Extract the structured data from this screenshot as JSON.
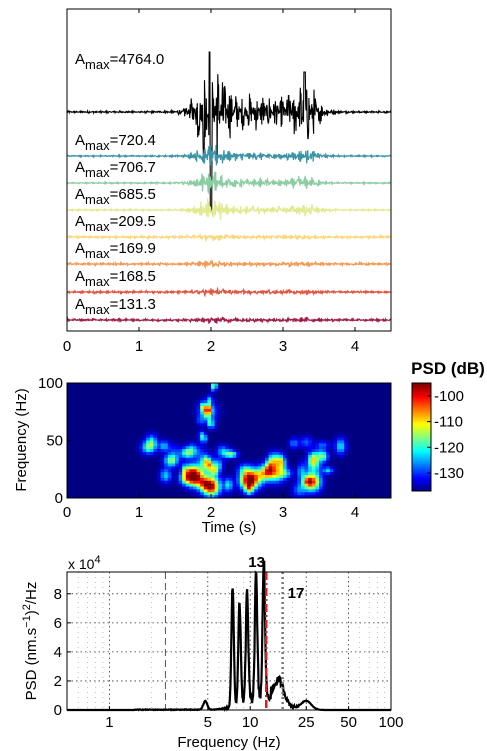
{
  "chart_data": [
    {
      "type": "line",
      "panel": "seismograms",
      "xlabel": "",
      "ylabel": "",
      "xlim": [
        0,
        4.5
      ],
      "xticks": [
        "0",
        "1",
        "2",
        "3",
        "4"
      ],
      "traces": [
        {
          "amax_prefix": "A",
          "amax_sub": "max",
          "amax_value": "=4764.0",
          "amax": 4764.0,
          "color": "#000000"
        },
        {
          "amax_prefix": "A",
          "amax_sub": "max",
          "amax_value": "=720.4",
          "amax": 720.4,
          "color": "#3a93a6"
        },
        {
          "amax_prefix": "A",
          "amax_sub": "max",
          "amax_value": "=706.7",
          "amax": 706.7,
          "color": "#8ccca2"
        },
        {
          "amax_prefix": "A",
          "amax_sub": "max",
          "amax_value": "=685.5",
          "amax": 685.5,
          "color": "#e2ea8f"
        },
        {
          "amax_prefix": "A",
          "amax_sub": "max",
          "amax_value": "=209.5",
          "amax": 209.5,
          "color": "#fbd77c"
        },
        {
          "amax_prefix": "A",
          "amax_sub": "max",
          "amax_value": "=169.9",
          "amax": 169.9,
          "color": "#f49a56"
        },
        {
          "amax_prefix": "A",
          "amax_sub": "max",
          "amax_value": "=168.5",
          "amax": 168.5,
          "color": "#df5541"
        },
        {
          "amax_prefix": "A",
          "amax_sub": "max",
          "amax_value": "=131.3",
          "amax": 131.3,
          "color": "#9e1e46"
        }
      ],
      "events_s": [
        2.0,
        3.3
      ]
    },
    {
      "type": "heatmap",
      "panel": "spectrogram",
      "xlabel": "Time (s)",
      "ylabel": "Frequency (Hz)",
      "xlim": [
        0,
        4.5
      ],
      "ylim": [
        0,
        100
      ],
      "xticks": [
        "0",
        "1",
        "2",
        "3",
        "4"
      ],
      "yticks": [
        "0",
        "50",
        "100"
      ],
      "colorbar": {
        "title": "PSD (dB)",
        "ticks": [
          "-100",
          "-110",
          "-120",
          "-130"
        ],
        "range_db": [
          -137,
          -95
        ]
      },
      "hotspots": [
        {
          "t": 2.0,
          "f": 10,
          "db": -96
        },
        {
          "t": 1.8,
          "f": 18,
          "db": -105
        },
        {
          "t": 2.55,
          "f": 18,
          "db": -106
        },
        {
          "t": 3.4,
          "f": 14,
          "db": -103
        },
        {
          "t": 2.9,
          "f": 22,
          "db": -112
        },
        {
          "t": 1.95,
          "f": 75,
          "db": -120
        }
      ]
    },
    {
      "type": "line",
      "panel": "psd",
      "xlabel": "Frequency (Hz)",
      "ylabel_main": "PSD (nm.s",
      "ylabel_sup": "−1",
      "ylabel_end": ")",
      "ylabel_sup2": "2",
      "ylabel_tail": "/Hz",
      "xscale": "log",
      "xlim": [
        0.5,
        100
      ],
      "ylim": [
        0,
        95000
      ],
      "y_exponent_base": "x 10",
      "y_exponent_power": "4",
      "xticks": [
        "1",
        "5",
        "10",
        "25",
        "50",
        "100"
      ],
      "yticks": [
        "0",
        "2",
        "4",
        "6",
        "8"
      ],
      "markers": [
        {
          "label": "13",
          "freq": 13,
          "color": "#e01b1b",
          "style": "dash-dot"
        },
        {
          "label": "17",
          "freq": 17,
          "color": "#777777",
          "style": "dotted"
        }
      ],
      "reference_line_hz": 2.5,
      "peaks": [
        {
          "freq": 7.5,
          "value": 82000
        },
        {
          "freq": 8.4,
          "value": 70000
        },
        {
          "freq": 9.5,
          "value": 76000
        },
        {
          "freq": 11.0,
          "value": 85000
        },
        {
          "freq": 12.5,
          "value": 94000
        },
        {
          "freq": 16,
          "value": 15000
        },
        {
          "freq": 25,
          "value": 6000
        },
        {
          "freq": 4.8,
          "value": 6000
        }
      ]
    }
  ]
}
